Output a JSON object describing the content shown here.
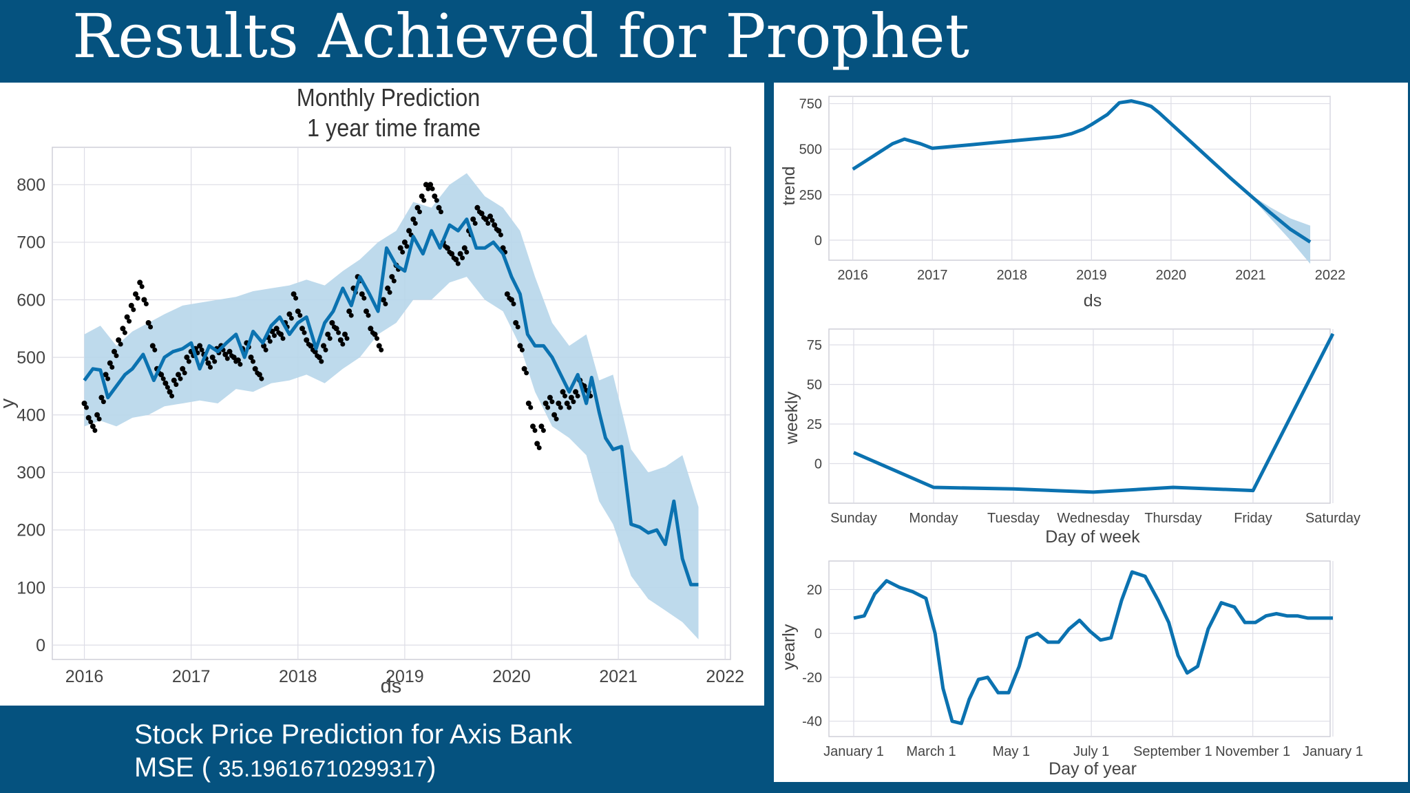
{
  "slide": {
    "title": "Results Achieved for Prophet",
    "caption_line1": "Stock Price Prediction for Axis Bank",
    "caption_mse_prefix": "MSE ( ",
    "caption_mse_value": "35.19616710299317",
    "caption_mse_suffix": ")"
  },
  "colors": {
    "background": "#05527f",
    "line": "#0b72b0",
    "band": "#b7d6ea",
    "points": "#000000",
    "grid": "#dddde6"
  },
  "chart_data": [
    {
      "id": "forecast",
      "type": "line",
      "title": [
        "Monthly Prediction",
        "1 year time frame"
      ],
      "xlabel": "ds",
      "ylabel": "y",
      "xlim": [
        2015.7,
        2022.05
      ],
      "ylim": [
        -25,
        865
      ],
      "xticks": [
        2016,
        2017,
        2018,
        2019,
        2020,
        2021,
        2022
      ],
      "yticks": [
        0,
        100,
        200,
        300,
        400,
        500,
        600,
        700,
        800
      ],
      "grid": true,
      "series": [
        {
          "role": "forecast",
          "x": [
            2016.0,
            2016.08,
            2016.15,
            2016.22,
            2016.3,
            2016.38,
            2016.45,
            2016.55,
            2016.65,
            2016.75,
            2016.83,
            2016.92,
            2017.0,
            2017.08,
            2017.17,
            2017.25,
            2017.33,
            2017.42,
            2017.5,
            2017.58,
            2017.67,
            2017.75,
            2017.83,
            2017.92,
            2018.0,
            2018.08,
            2018.17,
            2018.25,
            2018.33,
            2018.42,
            2018.5,
            2018.58,
            2018.67,
            2018.75,
            2018.83,
            2018.92,
            2019.0,
            2019.08,
            2019.17,
            2019.25,
            2019.33,
            2019.42,
            2019.5,
            2019.58,
            2019.67,
            2019.75,
            2019.83,
            2019.92,
            2020.0,
            2020.08,
            2020.15,
            2020.22,
            2020.3,
            2020.38,
            2020.46,
            2020.54,
            2020.62,
            2020.7,
            2020.75,
            2020.82,
            2020.88,
            2020.95,
            2021.03,
            2021.12,
            2021.2,
            2021.28,
            2021.36,
            2021.44,
            2021.52,
            2021.6,
            2021.68,
            2021.75
          ],
          "y": [
            460,
            480,
            478,
            430,
            450,
            470,
            480,
            505,
            460,
            500,
            510,
            515,
            525,
            480,
            520,
            510,
            525,
            540,
            500,
            545,
            525,
            555,
            570,
            540,
            560,
            570,
            515,
            560,
            580,
            620,
            590,
            640,
            610,
            580,
            690,
            660,
            650,
            710,
            680,
            720,
            690,
            730,
            720,
            740,
            690,
            690,
            700,
            680,
            640,
            610,
            540,
            520,
            520,
            500,
            470,
            440,
            470,
            420,
            465,
            405,
            360,
            340,
            345,
            210,
            205,
            195,
            200,
            175,
            250,
            150,
            105,
            105
          ]
        },
        {
          "role": "uncertainty-upper",
          "x": [
            2016.0,
            2016.15,
            2016.3,
            2016.45,
            2016.6,
            2016.75,
            2016.92,
            2017.08,
            2017.25,
            2017.42,
            2017.58,
            2017.75,
            2017.92,
            2018.08,
            2018.25,
            2018.42,
            2018.58,
            2018.75,
            2018.92,
            2019.08,
            2019.25,
            2019.42,
            2019.58,
            2019.75,
            2019.92,
            2020.08,
            2020.22,
            2020.38,
            2020.54,
            2020.7,
            2020.82,
            2020.95,
            2021.12,
            2021.28,
            2021.44,
            2021.6,
            2021.75
          ],
          "y": [
            540,
            555,
            520,
            545,
            560,
            575,
            590,
            595,
            600,
            605,
            615,
            620,
            625,
            635,
            625,
            650,
            670,
            700,
            720,
            770,
            760,
            800,
            820,
            780,
            760,
            720,
            640,
            560,
            520,
            540,
            460,
            470,
            340,
            300,
            310,
            330,
            240
          ]
        },
        {
          "role": "uncertainty-lower",
          "x": [
            2016.0,
            2016.15,
            2016.3,
            2016.45,
            2016.6,
            2016.75,
            2016.92,
            2017.08,
            2017.25,
            2017.42,
            2017.58,
            2017.75,
            2017.92,
            2018.08,
            2018.25,
            2018.42,
            2018.58,
            2018.75,
            2018.92,
            2019.08,
            2019.25,
            2019.42,
            2019.58,
            2019.75,
            2019.92,
            2020.08,
            2020.22,
            2020.38,
            2020.54,
            2020.7,
            2020.82,
            2020.95,
            2021.12,
            2021.28,
            2021.44,
            2021.6,
            2021.75
          ],
          "y": [
            380,
            390,
            380,
            395,
            400,
            415,
            420,
            425,
            420,
            445,
            440,
            455,
            460,
            470,
            455,
            480,
            500,
            540,
            560,
            600,
            600,
            630,
            640,
            600,
            580,
            520,
            440,
            380,
            360,
            330,
            250,
            210,
            120,
            80,
            60,
            40,
            10
          ]
        },
        {
          "role": "actual",
          "type": "scatter",
          "x": [
            2016.0,
            2016.04,
            2016.08,
            2016.12,
            2016.16,
            2016.2,
            2016.24,
            2016.28,
            2016.32,
            2016.36,
            2016.4,
            2016.44,
            2016.48,
            2016.52,
            2016.56,
            2016.6,
            2016.64,
            2016.68,
            2016.72,
            2016.76,
            2016.8,
            2016.84,
            2016.88,
            2016.92,
            2016.96,
            2017.0,
            2017.04,
            2017.08,
            2017.12,
            2017.16,
            2017.2,
            2017.24,
            2017.28,
            2017.32,
            2017.36,
            2017.4,
            2017.44,
            2017.48,
            2017.52,
            2017.56,
            2017.6,
            2017.64,
            2017.68,
            2017.72,
            2017.76,
            2017.8,
            2017.84,
            2017.88,
            2017.92,
            2017.96,
            2018.0,
            2018.04,
            2018.08,
            2018.12,
            2018.16,
            2018.2,
            2018.24,
            2018.28,
            2018.32,
            2018.36,
            2018.4,
            2018.44,
            2018.48,
            2018.52,
            2018.56,
            2018.6,
            2018.64,
            2018.68,
            2018.72,
            2018.76,
            2018.8,
            2018.84,
            2018.88,
            2018.92,
            2018.96,
            2019.0,
            2019.04,
            2019.08,
            2019.12,
            2019.16,
            2019.2,
            2019.24,
            2019.28,
            2019.32,
            2019.36,
            2019.4,
            2019.44,
            2019.48,
            2019.52,
            2019.56,
            2019.6,
            2019.64,
            2019.68,
            2019.72,
            2019.76,
            2019.8,
            2019.84,
            2019.88,
            2019.92,
            2019.96,
            2020.0,
            2020.04,
            2020.08,
            2020.12,
            2020.16,
            2020.2,
            2020.24,
            2020.28,
            2020.32,
            2020.36,
            2020.4,
            2020.44,
            2020.48,
            2020.52,
            2020.56,
            2020.6,
            2020.64,
            2020.68,
            2020.72
          ],
          "y": [
            420,
            395,
            380,
            400,
            430,
            470,
            490,
            510,
            530,
            550,
            570,
            590,
            610,
            630,
            600,
            560,
            520,
            480,
            470,
            455,
            440,
            460,
            470,
            480,
            500,
            510,
            515,
            520,
            505,
            490,
            500,
            515,
            520,
            505,
            510,
            500,
            495,
            515,
            525,
            500,
            480,
            470,
            520,
            535,
            545,
            550,
            540,
            560,
            575,
            610,
            580,
            550,
            530,
            520,
            510,
            500,
            520,
            540,
            560,
            550,
            530,
            540,
            580,
            620,
            640,
            610,
            580,
            550,
            540,
            520,
            600,
            620,
            640,
            660,
            690,
            700,
            720,
            740,
            760,
            780,
            800,
            800,
            780,
            760,
            700,
            690,
            680,
            670,
            680,
            690,
            720,
            740,
            760,
            750,
            740,
            745,
            730,
            720,
            690,
            610,
            600,
            560,
            520,
            480,
            420,
            380,
            350,
            380,
            420,
            430,
            400,
            420,
            440,
            420,
            430,
            440,
            460,
            450,
            440
          ]
        }
      ]
    },
    {
      "id": "trend",
      "type": "line",
      "xlabel": "ds",
      "ylabel": "trend",
      "xlim": [
        2015.7,
        2022.0
      ],
      "ylim": [
        -110,
        790
      ],
      "xticks": [
        2016,
        2017,
        2018,
        2019,
        2020,
        2021,
        2022
      ],
      "yticks": [
        0,
        250,
        500,
        750
      ],
      "series": [
        {
          "role": "trend",
          "x": [
            2016.0,
            2016.25,
            2016.5,
            2016.65,
            2016.85,
            2017.0,
            2017.25,
            2017.5,
            2017.75,
            2018.0,
            2018.25,
            2018.5,
            2018.6,
            2018.75,
            2018.9,
            2019.0,
            2019.2,
            2019.35,
            2019.5,
            2019.65,
            2019.75,
            2019.85,
            2020.0,
            2020.25,
            2020.5,
            2020.75,
            2021.0,
            2021.25,
            2021.5,
            2021.75
          ],
          "y": [
            390,
            460,
            530,
            555,
            530,
            505,
            515,
            525,
            535,
            545,
            555,
            565,
            570,
            585,
            610,
            635,
            690,
            755,
            765,
            750,
            735,
            700,
            640,
            540,
            440,
            340,
            245,
            150,
            60,
            -10
          ]
        },
        {
          "role": "uncertainty-upper",
          "x": [
            2021.0,
            2021.25,
            2021.5,
            2021.75
          ],
          "y": [
            250,
            180,
            120,
            80
          ]
        },
        {
          "role": "uncertainty-lower",
          "x": [
            2021.0,
            2021.25,
            2021.5,
            2021.75
          ],
          "y": [
            240,
            120,
            0,
            -130
          ]
        }
      ]
    },
    {
      "id": "weekly",
      "type": "line",
      "xlabel": "Day of week",
      "ylabel": "weekly",
      "categories": [
        "Sunday",
        "Monday",
        "Tuesday",
        "Wednesday",
        "Thursday",
        "Friday",
        "Saturday"
      ],
      "yticks": [
        0,
        25,
        50,
        75
      ],
      "ylim": [
        -25,
        85
      ],
      "series": [
        {
          "role": "weekly",
          "values": [
            7,
            -15,
            -16,
            -18,
            -15,
            -17,
            82
          ]
        }
      ]
    },
    {
      "id": "yearly",
      "type": "line",
      "xlabel": "Day of year",
      "ylabel": "yearly",
      "xticks_labels": [
        "January 1",
        "March 1",
        "May 1",
        "July 1",
        "September 1",
        "November 1",
        "January 1"
      ],
      "xticks_days": [
        0,
        59,
        120,
        181,
        243,
        304,
        365
      ],
      "yticks": [
        -40,
        -20,
        0,
        20
      ],
      "ylim": [
        -47,
        33
      ],
      "series": [
        {
          "role": "yearly",
          "x": [
            0,
            8,
            16,
            25,
            35,
            45,
            55,
            62,
            68,
            75,
            82,
            88,
            95,
            102,
            110,
            118,
            126,
            132,
            140,
            148,
            156,
            164,
            172,
            180,
            188,
            196,
            204,
            212,
            222,
            232,
            240,
            247,
            254,
            262,
            270,
            280,
            290,
            298,
            306,
            314,
            322,
            330,
            338,
            346,
            356,
            365
          ],
          "y": [
            7,
            8,
            18,
            24,
            21,
            19,
            16,
            0,
            -25,
            -40,
            -41,
            -30,
            -21,
            -20,
            -27,
            -27,
            -15,
            -2,
            0,
            -4,
            -4,
            2,
            6,
            1,
            -3,
            -2,
            15,
            28,
            26,
            15,
            5,
            -10,
            -18,
            -15,
            2,
            14,
            12,
            5,
            5,
            8,
            9,
            8,
            8,
            7,
            7,
            7
          ]
        }
      ]
    }
  ]
}
